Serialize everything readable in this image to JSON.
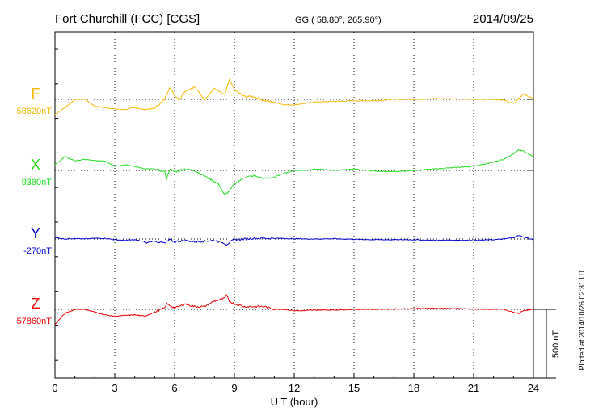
{
  "header": {
    "station": "Fort Churchill (FCC)  [CGS]",
    "coords": "GG ( 58.80°, 265.90°)",
    "date": "2014/09/25"
  },
  "footer": {
    "plotted": "Plotted at 2014/10/26 02:31  UT",
    "scale_label": "500 nT"
  },
  "chart_data": {
    "type": "line",
    "xlabel": "U T (hour)",
    "xlim": [
      0,
      24
    ],
    "xticks": [
      0,
      3,
      6,
      9,
      12,
      15,
      18,
      21,
      24
    ],
    "ylabel": "",
    "scale_bar_nT": 500,
    "grid": true,
    "series": [
      {
        "name": "F",
        "baseline_label": "58620nT",
        "baseline_nT": 58620,
        "color": "#f5b800",
        "x": [
          0,
          0.5,
          1,
          1.5,
          2,
          2.5,
          3,
          3.5,
          4,
          4.5,
          5,
          5.5,
          5.75,
          6,
          6.25,
          6.5,
          7,
          7.5,
          8,
          8.5,
          8.75,
          9,
          9.5,
          10,
          10.5,
          11,
          11.5,
          12,
          12.5,
          13,
          14,
          15,
          16,
          17,
          18,
          19,
          20,
          21,
          22,
          22.5,
          23,
          23.5,
          24
        ],
        "y": [
          58510,
          58560,
          58620,
          58620,
          58570,
          58560,
          58550,
          58545,
          58560,
          58545,
          58555,
          58620,
          58710,
          58650,
          58620,
          58680,
          58710,
          58620,
          58700,
          58650,
          58760,
          58690,
          58640,
          58640,
          58610,
          58600,
          58580,
          58580,
          58590,
          58600,
          58605,
          58610,
          58610,
          58620,
          58620,
          58625,
          58625,
          58620,
          58620,
          58615,
          58590,
          58660,
          58625
        ]
      },
      {
        "name": "X",
        "baseline_label": "9380nT",
        "baseline_nT": 9380,
        "color": "#22dd22",
        "x": [
          0,
          0.5,
          1,
          1.5,
          2,
          2.5,
          3,
          3.5,
          4,
          4.5,
          5,
          5.5,
          5.6,
          5.75,
          6,
          6.5,
          7,
          7.5,
          8,
          8.25,
          8.5,
          8.75,
          9,
          9.5,
          10,
          10.5,
          11,
          11.5,
          12,
          12.5,
          13,
          14,
          15,
          16,
          17,
          18,
          19,
          20,
          21,
          22,
          22.5,
          23,
          23.25,
          23.5,
          24
        ],
        "y": [
          9420,
          9480,
          9450,
          9460,
          9450,
          9450,
          9410,
          9420,
          9410,
          9390,
          9390,
          9370,
          9320,
          9390,
          9370,
          9390,
          9380,
          9340,
          9300,
          9270,
          9200,
          9230,
          9280,
          9330,
          9340,
          9320,
          9330,
          9360,
          9380,
          9380,
          9390,
          9380,
          9390,
          9375,
          9370,
          9380,
          9390,
          9400,
          9410,
          9440,
          9460,
          9500,
          9530,
          9520,
          9480
        ]
      },
      {
        "name": "Y",
        "baseline_label": "-270nT",
        "baseline_nT": -270,
        "color": "#0000cc",
        "x": [
          0,
          0.5,
          1,
          1.5,
          2,
          2.5,
          3,
          3.5,
          4,
          4.5,
          4.6,
          4.75,
          5,
          5.5,
          5.5,
          5.6,
          5.75,
          6,
          6.5,
          7,
          7.5,
          8,
          8.5,
          8.6,
          8.75,
          9,
          9.5,
          10,
          11,
          12,
          13,
          14,
          15,
          16,
          17,
          18,
          19,
          20,
          21,
          22,
          22.5,
          23,
          23.25,
          23.5,
          24
        ],
        "y": [
          -260,
          -270,
          -265,
          -270,
          -265,
          -265,
          -275,
          -280,
          -275,
          -290,
          -300,
          -290,
          -285,
          -300,
          -310,
          -290,
          -275,
          -290,
          -280,
          -290,
          -285,
          -280,
          -300,
          -310,
          -295,
          -275,
          -270,
          -265,
          -265,
          -268,
          -270,
          -268,
          -272,
          -275,
          -275,
          -275,
          -280,
          -278,
          -280,
          -275,
          -270,
          -260,
          -245,
          -255,
          -275
        ]
      },
      {
        "name": "Z",
        "baseline_label": "57860nT",
        "baseline_nT": 57860,
        "color": "#ee0000",
        "x": [
          0,
          0.5,
          1,
          1.5,
          2,
          2.5,
          3,
          3.5,
          4,
          4.5,
          5,
          5.5,
          5.6,
          5.75,
          6,
          6.25,
          6.5,
          7,
          7.5,
          8,
          8.5,
          8.6,
          8.75,
          9,
          9.5,
          10,
          10.5,
          11,
          11.5,
          12,
          12.5,
          13,
          14,
          15,
          16,
          17,
          18,
          19,
          20,
          21,
          22,
          22.5,
          23,
          23.25,
          23.5,
          24
        ],
        "y": [
          57750,
          57830,
          57860,
          57860,
          57840,
          57820,
          57810,
          57815,
          57820,
          57810,
          57840,
          57870,
          57900,
          57890,
          57870,
          57880,
          57900,
          57880,
          57880,
          57920,
          57940,
          57960,
          57920,
          57900,
          57880,
          57880,
          57880,
          57860,
          57860,
          57850,
          57850,
          57855,
          57855,
          57860,
          57860,
          57862,
          57865,
          57868,
          57865,
          57862,
          57860,
          57860,
          57840,
          57830,
          57850,
          57860
        ]
      }
    ]
  }
}
